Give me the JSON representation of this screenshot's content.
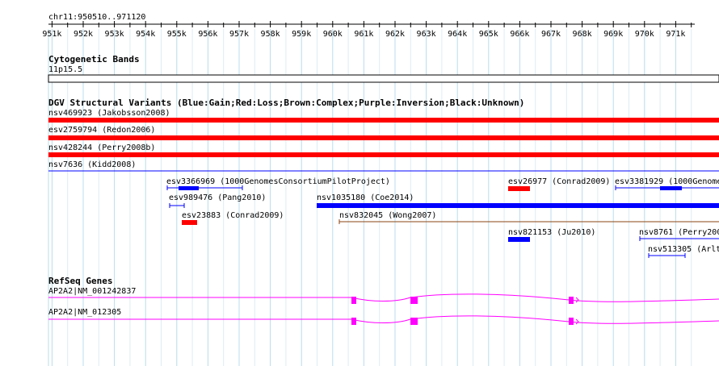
{
  "ruler": {
    "position_label": "chr11:950510..971120",
    "ticks": [
      "951k",
      "952k",
      "953k",
      "954k",
      "955k",
      "956k",
      "957k",
      "958k",
      "959k",
      "960k",
      "961k",
      "962k",
      "963k",
      "964k",
      "965k",
      "966k",
      "967k",
      "968k",
      "969k",
      "970k",
      "971k"
    ]
  },
  "cytobands": {
    "title": "Cytogenetic Bands",
    "band_label": "11p15.5"
  },
  "dgv": {
    "title": "DGV Structural Variants (Blue:Gain;Red:Loss;Brown:Complex;Purple:Inversion;Black:Unknown)",
    "colors": {
      "gain": "#0000ff",
      "loss": "#ff0000",
      "complex": "#8b4513"
    },
    "features": [
      {
        "label": "nsv469923 (Jakobsson2008)",
        "type": "loss"
      },
      {
        "label": "esv2759794 (Redon2006)",
        "type": "loss"
      },
      {
        "label": "nsv428244 (Perry2008b)",
        "type": "loss"
      },
      {
        "label": "nsv7636 (Kidd2008)",
        "type": "gain"
      },
      {
        "label": "esv3366969 (1000GenomesConsortiumPilotProject)",
        "type": "gain"
      },
      {
        "label": "esv26977 (Conrad2009)",
        "type": "loss"
      },
      {
        "label": "esv3381929 (1000Genome",
        "type": "gain"
      },
      {
        "label": "esv989476 (Pang2010)",
        "type": "gain"
      },
      {
        "label": "nsv1035180 (Coe2014)",
        "type": "gain"
      },
      {
        "label": "esv23883 (Conrad2009)",
        "type": "loss"
      },
      {
        "label": "nsv832045 (Wong2007)",
        "type": "complex"
      },
      {
        "label": "nsv821153 (Ju2010)",
        "type": "gain"
      },
      {
        "label": "nsv8761 (Perry200",
        "type": "gain"
      },
      {
        "label": "nsv513305 (Arlt",
        "type": "gain"
      }
    ]
  },
  "refseq": {
    "title": "RefSeq Genes",
    "gene_color": "#ff00ff",
    "transcripts": [
      {
        "label": "AP2A2|NM_001242837"
      },
      {
        "label": "AP2A2|NM_012305"
      }
    ]
  }
}
